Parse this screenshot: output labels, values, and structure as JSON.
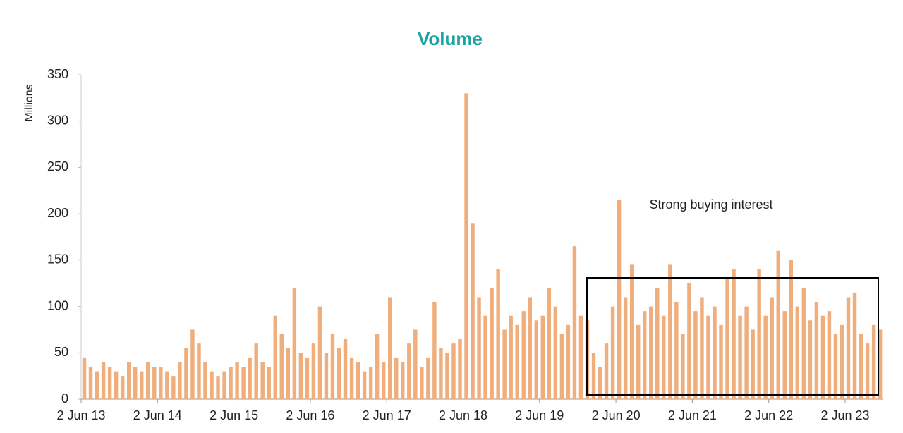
{
  "chart_data": {
    "type": "bar",
    "title": "Volume",
    "y_label": "Millions",
    "annotation": "Strong buying interest",
    "color": "#efae7c",
    "categories": [
      "2 Jun 13",
      null,
      null,
      null,
      null,
      null,
      null,
      null,
      null,
      null,
      null,
      null,
      "2 Jun 14",
      null,
      null,
      null,
      null,
      null,
      null,
      null,
      null,
      null,
      null,
      null,
      "2 Jun 15",
      null,
      null,
      null,
      null,
      null,
      null,
      null,
      null,
      null,
      null,
      null,
      "2 Jun 16",
      null,
      null,
      null,
      null,
      null,
      null,
      null,
      null,
      null,
      null,
      null,
      "2 Jun 17",
      null,
      null,
      null,
      null,
      null,
      null,
      null,
      null,
      null,
      null,
      null,
      "2 Jun 18",
      null,
      null,
      null,
      null,
      null,
      null,
      null,
      null,
      null,
      null,
      null,
      "2 Jun 19",
      null,
      null,
      null,
      null,
      null,
      null,
      null,
      null,
      null,
      null,
      null,
      "2 Jun 20",
      null,
      null,
      null,
      null,
      null,
      null,
      null,
      null,
      null,
      null,
      null,
      "2 Jun 21",
      null,
      null,
      null,
      null,
      null,
      null,
      null,
      null,
      null,
      null,
      null,
      "2 Jun 22",
      null,
      null,
      null,
      null,
      null,
      null,
      null,
      null,
      null,
      null,
      null,
      "2 Jun 23",
      null,
      null,
      null,
      null,
      null
    ],
    "values": [
      45,
      35,
      30,
      40,
      35,
      30,
      25,
      40,
      35,
      30,
      40,
      35,
      35,
      30,
      25,
      40,
      55,
      75,
      60,
      40,
      30,
      25,
      30,
      35,
      40,
      35,
      45,
      60,
      40,
      35,
      90,
      70,
      55,
      120,
      50,
      45,
      60,
      100,
      50,
      70,
      55,
      65,
      45,
      40,
      30,
      35,
      70,
      40,
      110,
      45,
      40,
      60,
      75,
      35,
      45,
      105,
      55,
      50,
      60,
      65,
      330,
      190,
      110,
      90,
      120,
      140,
      75,
      90,
      80,
      95,
      110,
      85,
      90,
      120,
      100,
      70,
      80,
      165,
      90,
      85,
      50,
      35,
      60,
      100,
      215,
      110,
      145,
      80,
      95,
      100,
      120,
      90,
      145,
      105,
      70,
      125,
      95,
      110,
      90,
      100,
      80,
      130,
      140,
      90,
      100,
      75,
      140,
      90,
      110,
      160,
      95,
      150,
      100,
      120,
      85,
      105,
      90,
      95,
      70,
      80,
      110,
      115,
      70,
      60,
      80,
      75
    ],
    "ylim": [
      0,
      350
    ],
    "yticks": [
      0,
      50,
      100,
      150,
      200,
      250,
      300,
      350
    ]
  }
}
